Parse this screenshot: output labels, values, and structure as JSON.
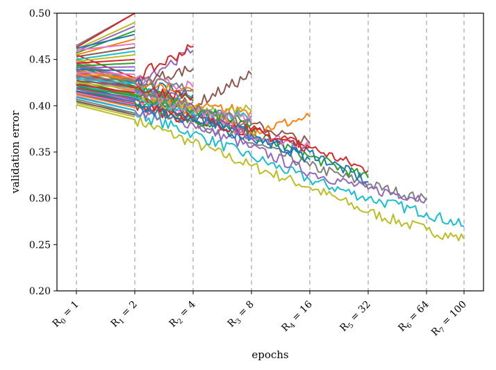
{
  "chart_data": {
    "type": "line",
    "title": "",
    "xlabel": "epochs",
    "ylabel": "validation error",
    "ylim": [
      0.2,
      0.5
    ],
    "yticks": [
      "0.20",
      "0.25",
      "0.30",
      "0.35",
      "0.40",
      "0.45",
      "0.50"
    ],
    "xlim": [
      1,
      100
    ],
    "xscale": "rung",
    "grid": false,
    "legend": "none",
    "rungs": [
      {
        "label": "R0 = 1",
        "sub": "0",
        "value": "= 1",
        "epoch": 1
      },
      {
        "label": "R1 = 2",
        "sub": "1",
        "value": "= 2",
        "epoch": 2
      },
      {
        "label": "R2 = 4",
        "sub": "2",
        "value": "= 4",
        "epoch": 4
      },
      {
        "label": "R3 = 8",
        "sub": "3",
        "value": "= 8",
        "epoch": 8
      },
      {
        "label": "R4 = 16",
        "sub": "4",
        "value": "= 16",
        "epoch": 16
      },
      {
        "label": "R5 = 32",
        "sub": "5",
        "value": "= 32",
        "epoch": 32
      },
      {
        "label": "R6 = 64",
        "sub": "6",
        "value": "= 64",
        "epoch": 64
      },
      {
        "label": "R7 = 100",
        "sub": "7",
        "value": "= 100",
        "epoch": 100
      }
    ],
    "palette": [
      "#1f77b4",
      "#ff7f0e",
      "#2ca02c",
      "#d62728",
      "#9467bd",
      "#8c564b",
      "#e377c2",
      "#7f7f7f",
      "#bcbd22",
      "#17becf"
    ],
    "rung_line_color": "#c8c8c8",
    "series": [
      {
        "color": "#bcbd22",
        "epochs": [
          1,
          2,
          4,
          8,
          16,
          32,
          64,
          100
        ],
        "values": [
          0.401,
          0.385,
          0.36,
          0.335,
          0.312,
          0.285,
          0.266,
          0.256
        ]
      },
      {
        "color": "#17becf",
        "epochs": [
          1,
          2,
          4,
          8,
          16,
          32,
          64,
          100
        ],
        "values": [
          0.404,
          0.392,
          0.37,
          0.345,
          0.32,
          0.3,
          0.284,
          0.27
        ]
      },
      {
        "color": "#7f7f7f",
        "epochs": [
          1,
          2,
          4,
          8,
          16,
          32,
          64
        ],
        "values": [
          0.413,
          0.4,
          0.383,
          0.36,
          0.335,
          0.315,
          0.298
        ]
      },
      {
        "color": "#9467bd",
        "epochs": [
          1,
          2,
          4,
          8,
          16,
          32,
          64
        ],
        "values": [
          0.41,
          0.395,
          0.38,
          0.355,
          0.328,
          0.31,
          0.3
        ]
      },
      {
        "color": "#d62728",
        "epochs": [
          1,
          2,
          4,
          8,
          16,
          32
        ],
        "values": [
          0.415,
          0.402,
          0.383,
          0.375,
          0.355,
          0.33
        ]
      },
      {
        "color": "#2ca02c",
        "epochs": [
          1,
          2,
          4,
          8,
          16,
          32
        ],
        "values": [
          0.418,
          0.404,
          0.385,
          0.37,
          0.345,
          0.322
        ]
      },
      {
        "color": "#1f77b4",
        "epochs": [
          1,
          2,
          4,
          8,
          16,
          32
        ],
        "values": [
          0.412,
          0.4,
          0.384,
          0.365,
          0.35,
          0.318
        ]
      },
      {
        "color": "#ff7f0e",
        "epochs": [
          1,
          2,
          4,
          8,
          16
        ],
        "values": [
          0.428,
          0.41,
          0.395,
          0.372,
          0.388
        ]
      },
      {
        "color": "#e377c2",
        "epochs": [
          1,
          2,
          4,
          8,
          16
        ],
        "values": [
          0.42,
          0.405,
          0.392,
          0.368,
          0.358
        ]
      },
      {
        "color": "#8c564b",
        "epochs": [
          1,
          2,
          4,
          8,
          16
        ],
        "values": [
          0.425,
          0.41,
          0.393,
          0.38,
          0.36
        ]
      },
      {
        "color": "#d62728",
        "epochs": [
          1,
          2,
          4,
          8,
          16
        ],
        "values": [
          0.419,
          0.408,
          0.387,
          0.372,
          0.355
        ]
      },
      {
        "color": "#1f77b4",
        "epochs": [
          1,
          2,
          4,
          8,
          16
        ],
        "values": [
          0.422,
          0.406,
          0.389,
          0.369,
          0.342
        ]
      },
      {
        "color": "#9467bd",
        "epochs": [
          1,
          2,
          4,
          8
        ],
        "values": [
          0.43,
          0.415,
          0.398,
          0.365
        ]
      },
      {
        "color": "#8c564b",
        "epochs": [
          1,
          2,
          4,
          8
        ],
        "values": [
          0.432,
          0.418,
          0.4,
          0.434
        ]
      },
      {
        "color": "#ff7f0e",
        "epochs": [
          1,
          2,
          4,
          8
        ],
        "values": [
          0.436,
          0.414,
          0.398,
          0.395
        ]
      },
      {
        "color": "#bcbd22",
        "epochs": [
          1,
          2,
          4,
          8
        ],
        "values": [
          0.44,
          0.412,
          0.393,
          0.395
        ]
      },
      {
        "color": "#17becf",
        "epochs": [
          1,
          2,
          4,
          8
        ],
        "values": [
          0.423,
          0.409,
          0.393,
          0.389
        ]
      },
      {
        "color": "#2ca02c",
        "epochs": [
          1,
          2,
          4,
          8
        ],
        "values": [
          0.427,
          0.412,
          0.395,
          0.38
        ]
      },
      {
        "color": "#e377c2",
        "epochs": [
          1,
          2,
          4,
          8
        ],
        "values": [
          0.434,
          0.415,
          0.397,
          0.384
        ]
      },
      {
        "color": "#7f7f7f",
        "epochs": [
          1,
          2,
          4,
          8
        ],
        "values": [
          0.438,
          0.42,
          0.398,
          0.38
        ]
      },
      {
        "color": "#9467bd",
        "epochs": [
          1,
          2,
          4
        ],
        "values": [
          0.45,
          0.425,
          0.46
        ]
      },
      {
        "color": "#d62728",
        "epochs": [
          1,
          2,
          4
        ],
        "values": [
          0.455,
          0.43,
          0.464
        ]
      },
      {
        "color": "#8c564b",
        "epochs": [
          1,
          2,
          4
        ],
        "values": [
          0.445,
          0.425,
          0.44
        ]
      },
      {
        "color": "#bcbd22",
        "epochs": [
          1,
          2,
          4
        ],
        "values": [
          0.452,
          0.42,
          0.398
        ]
      },
      {
        "color": "#e377c2",
        "epochs": [
          1,
          2,
          4
        ],
        "values": [
          0.448,
          0.428,
          0.42
        ]
      },
      {
        "color": "#1f77b4",
        "epochs": [
          1,
          2,
          4
        ],
        "values": [
          0.442,
          0.424,
          0.412
        ]
      },
      {
        "color": "#17becf",
        "epochs": [
          1,
          2,
          4
        ],
        "values": [
          0.436,
          0.418,
          0.408
        ]
      },
      {
        "color": "#2ca02c",
        "epochs": [
          1,
          2,
          4
        ],
        "values": [
          0.444,
          0.421,
          0.405
        ]
      },
      {
        "color": "#ff7f0e",
        "epochs": [
          1,
          2,
          4
        ],
        "values": [
          0.439,
          0.426,
          0.415
        ]
      },
      {
        "color": "#7f7f7f",
        "epochs": [
          1,
          2,
          4
        ],
        "values": [
          0.446,
          0.427,
          0.418
        ]
      },
      {
        "color": "#9467bd",
        "epochs": [
          1,
          2,
          4
        ],
        "values": [
          0.433,
          0.417,
          0.404
        ]
      },
      {
        "color": "#d62728",
        "epochs": [
          1,
          2,
          4
        ],
        "values": [
          0.437,
          0.419,
          0.41
        ]
      },
      {
        "color": "#7f7f7f",
        "epochs": [
          1,
          2
        ],
        "values": [
          0.465,
          0.5
        ]
      },
      {
        "color": "#d62728",
        "epochs": [
          1,
          2
        ],
        "values": [
          0.463,
          0.5
        ]
      },
      {
        "color": "#bcbd22",
        "epochs": [
          1,
          2
        ],
        "values": [
          0.461,
          0.49
        ]
      },
      {
        "color": "#9467bd",
        "epochs": [
          1,
          2
        ],
        "values": [
          0.459,
          0.486
        ]
      },
      {
        "color": "#2ca02c",
        "epochs": [
          1,
          2
        ],
        "values": [
          0.457,
          0.481
        ]
      },
      {
        "color": "#1f77b4",
        "epochs": [
          1,
          2
        ],
        "values": [
          0.462,
          0.477
        ]
      },
      {
        "color": "#ff7f0e",
        "epochs": [
          1,
          2
        ],
        "values": [
          0.455,
          0.472
        ]
      },
      {
        "color": "#e377c2",
        "epochs": [
          1,
          2
        ],
        "values": [
          0.46,
          0.467
        ]
      },
      {
        "color": "#8c564b",
        "epochs": [
          1,
          2
        ],
        "values": [
          0.453,
          0.463
        ]
      },
      {
        "color": "#17becf",
        "epochs": [
          1,
          2
        ],
        "values": [
          0.45,
          0.459
        ]
      },
      {
        "color": "#bcbd22",
        "epochs": [
          1,
          2
        ],
        "values": [
          0.448,
          0.455
        ]
      },
      {
        "color": "#d62728",
        "epochs": [
          1,
          2
        ],
        "values": [
          0.446,
          0.45
        ]
      },
      {
        "color": "#2ca02c",
        "epochs": [
          1,
          2
        ],
        "values": [
          0.443,
          0.446
        ]
      },
      {
        "color": "#9467bd",
        "epochs": [
          1,
          2
        ],
        "values": [
          0.441,
          0.442
        ]
      },
      {
        "color": "#1f77b4",
        "epochs": [
          1,
          2
        ],
        "values": [
          0.439,
          0.438
        ]
      },
      {
        "color": "#e377c2",
        "epochs": [
          1,
          2
        ],
        "values": [
          0.436,
          0.434
        ]
      },
      {
        "color": "#ff7f0e",
        "epochs": [
          1,
          2
        ],
        "values": [
          0.434,
          0.43
        ]
      },
      {
        "color": "#7f7f7f",
        "epochs": [
          1,
          2
        ],
        "values": [
          0.431,
          0.427
        ]
      },
      {
        "color": "#17becf",
        "epochs": [
          1,
          2
        ],
        "values": [
          0.429,
          0.424
        ]
      },
      {
        "color": "#8c564b",
        "epochs": [
          1,
          2
        ],
        "values": [
          0.427,
          0.421
        ]
      },
      {
        "color": "#bcbd22",
        "epochs": [
          1,
          2
        ],
        "values": [
          0.425,
          0.418
        ]
      },
      {
        "color": "#d62728",
        "epochs": [
          1,
          2
        ],
        "values": [
          0.423,
          0.414
        ]
      },
      {
        "color": "#2ca02c",
        "epochs": [
          1,
          2
        ],
        "values": [
          0.42,
          0.411
        ]
      },
      {
        "color": "#9467bd",
        "epochs": [
          1,
          2
        ],
        "values": [
          0.418,
          0.407
        ]
      },
      {
        "color": "#1f77b4",
        "epochs": [
          1,
          2
        ],
        "values": [
          0.416,
          0.404
        ]
      },
      {
        "color": "#e377c2",
        "epochs": [
          1,
          2
        ],
        "values": [
          0.414,
          0.401
        ]
      },
      {
        "color": "#ff7f0e",
        "epochs": [
          1,
          2
        ],
        "values": [
          0.412,
          0.398
        ]
      },
      {
        "color": "#17becf",
        "epochs": [
          1,
          2
        ],
        "values": [
          0.409,
          0.395
        ]
      },
      {
        "color": "#7f7f7f",
        "epochs": [
          1,
          2
        ],
        "values": [
          0.407,
          0.392
        ]
      },
      {
        "color": "#8c564b",
        "epochs": [
          1,
          2
        ],
        "values": [
          0.405,
          0.39
        ]
      },
      {
        "color": "#bcbd22",
        "epochs": [
          1,
          2
        ],
        "values": [
          0.403,
          0.388
        ]
      }
    ]
  }
}
